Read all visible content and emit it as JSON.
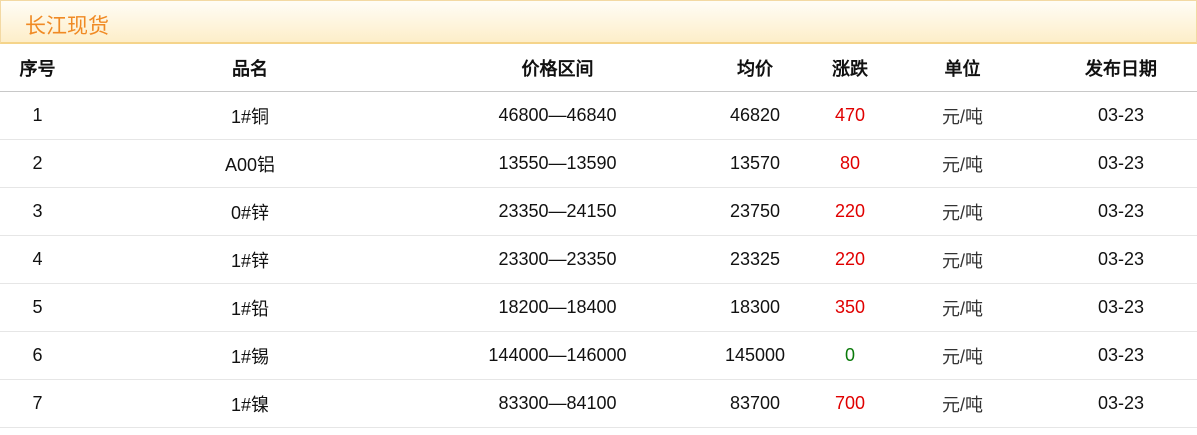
{
  "title": "长江现货",
  "colors": {
    "up": "#e00000",
    "flat": "#0a7a0a",
    "title": "#f08a24"
  },
  "columns": [
    "序号",
    "品名",
    "价格区间",
    "均价",
    "涨跌",
    "单位",
    "发布日期"
  ],
  "rows": [
    {
      "no": "1",
      "name": "1#铜",
      "range": "46800—46840",
      "avg": "46820",
      "change": "470",
      "unit": "元/吨",
      "date": "03-23"
    },
    {
      "no": "2",
      "name": "A00铝",
      "range": "13550—13590",
      "avg": "13570",
      "change": "80",
      "unit": "元/吨",
      "date": "03-23"
    },
    {
      "no": "3",
      "name": "0#锌",
      "range": "23350—24150",
      "avg": "23750",
      "change": "220",
      "unit": "元/吨",
      "date": "03-23"
    },
    {
      "no": "4",
      "name": "1#锌",
      "range": "23300—23350",
      "avg": "23325",
      "change": "220",
      "unit": "元/吨",
      "date": "03-23"
    },
    {
      "no": "5",
      "name": "1#铅",
      "range": "18200—18400",
      "avg": "18300",
      "change": "350",
      "unit": "元/吨",
      "date": "03-23"
    },
    {
      "no": "6",
      "name": "1#锡",
      "range": "144000—146000",
      "avg": "145000",
      "change": "0",
      "unit": "元/吨",
      "date": "03-23"
    },
    {
      "no": "7",
      "name": "1#镍",
      "range": "83300—84100",
      "avg": "83700",
      "change": "700",
      "unit": "元/吨",
      "date": "03-23"
    }
  ]
}
